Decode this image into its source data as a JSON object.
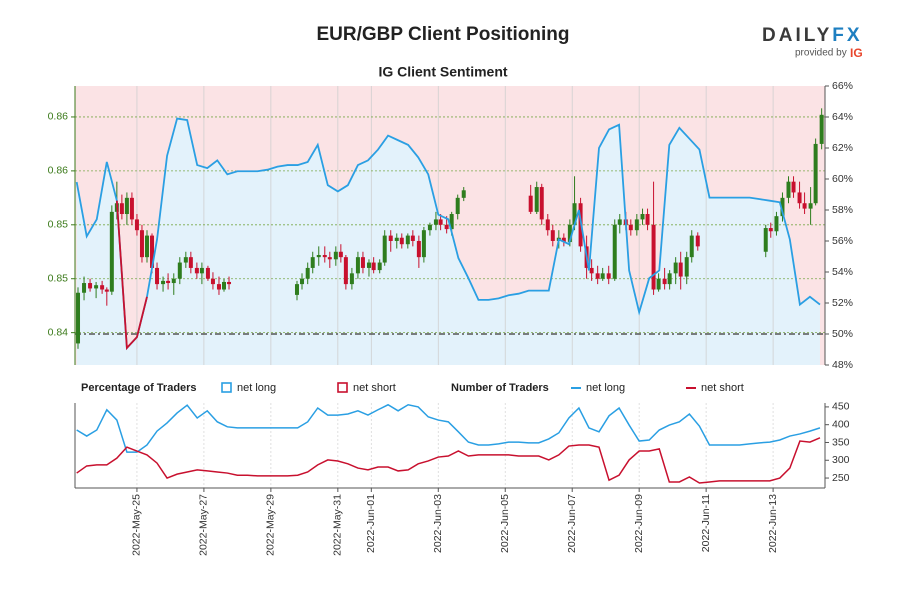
{
  "header": {
    "title": "EUR/GBP Client Positioning",
    "brand": [
      "DAILY",
      "FX"
    ],
    "provided_by": "provided by",
    "ig": "IG"
  },
  "chart_data": [
    {
      "type": "candlestick",
      "title": "IG Client Sentiment",
      "xlim": [
        23.15,
        45.55
      ],
      "ylim": [
        0.837,
        0.86287
      ],
      "yticks": [
        0.84,
        {
          "value": 0.845,
          "label": "0.85"
        },
        0.85,
        {
          "value": 0.855,
          "label": "0.86"
        },
        0.86
      ],
      "y2lim": [
        48,
        66
      ],
      "y2ticks": [
        {
          "value": 48,
          "label": "48%"
        },
        {
          "value": 50,
          "label": "50%"
        },
        {
          "value": 52,
          "label": "52%"
        },
        {
          "value": 54,
          "label": "54%"
        },
        {
          "value": 56,
          "label": "56%"
        },
        {
          "value": 58,
          "label": "58%"
        },
        {
          "value": 60,
          "label": "60%"
        },
        {
          "value": 62,
          "label": "62%"
        },
        {
          "value": 64,
          "label": "64%"
        },
        {
          "value": 66,
          "label": "66%"
        }
      ],
      "reference_line": 50,
      "grid": true,
      "up_color": "#2e7d1e",
      "down_color": "#c8102e",
      "candles": {
        "x": [
          23.24,
          23.42,
          23.6,
          23.78,
          23.96,
          24.1,
          24.25,
          24.4,
          24.55,
          24.7,
          24.85,
          25,
          25.15,
          25.3,
          25.45,
          25.6,
          25.78,
          25.93,
          26.1,
          26.28,
          26.46,
          26.61,
          26.79,
          26.94,
          27.12,
          27.27,
          27.45,
          27.6,
          27.75,
          29.78,
          29.93,
          30.1,
          30.25,
          30.43,
          30.61,
          30.76,
          30.94,
          31.09,
          31.24,
          31.42,
          31.6,
          31.75,
          31.93,
          32.07,
          32.25,
          32.4,
          32.58,
          32.76,
          32.91,
          33.09,
          33.24,
          33.42,
          33.57,
          33.75,
          33.93,
          34.07,
          34.25,
          34.4,
          34.58,
          34.76,
          36.76,
          36.94,
          37.09,
          37.27,
          37.42,
          37.6,
          37.75,
          37.93,
          38.07,
          38.25,
          38.43,
          38.58,
          38.76,
          38.91,
          39.09,
          39.27,
          39.42,
          39.6,
          39.75,
          39.93,
          40.1,
          40.25,
          40.43,
          40.58,
          40.76,
          40.91,
          41.09,
          41.24,
          41.42,
          41.57,
          41.75,
          43.78,
          43.93,
          44.1,
          44.28,
          44.46,
          44.61,
          44.79,
          44.94,
          45.12,
          45.27,
          45.45
        ],
        "open": [
          0.839,
          0.8437,
          0.8446,
          0.8441,
          0.8444,
          0.844,
          0.8438,
          0.8512,
          0.852,
          0.851,
          0.8525,
          0.8505,
          0.8495,
          0.847,
          0.849,
          0.846,
          0.8445,
          0.8448,
          0.8446,
          0.845,
          0.8465,
          0.847,
          0.846,
          0.8455,
          0.846,
          0.845,
          0.8445,
          0.844,
          0.8447,
          0.8435,
          0.8445,
          0.845,
          0.846,
          0.847,
          0.8472,
          0.847,
          0.8468,
          0.8475,
          0.847,
          0.8445,
          0.8455,
          0.847,
          0.846,
          0.8465,
          0.8458,
          0.8465,
          0.849,
          0.8485,
          0.8488,
          0.8482,
          0.849,
          0.8485,
          0.847,
          0.8495,
          0.85,
          0.8505,
          0.85,
          0.8496,
          0.851,
          0.8525,
          0.8527,
          0.8512,
          0.8535,
          0.8505,
          0.8495,
          0.8485,
          0.8488,
          0.8484,
          0.85,
          0.852,
          0.848,
          0.846,
          0.8455,
          0.845,
          0.8455,
          0.845,
          0.85,
          0.8505,
          0.85,
          0.8495,
          0.8505,
          0.851,
          0.85,
          0.844,
          0.845,
          0.8445,
          0.8455,
          0.8465,
          0.8452,
          0.847,
          0.849,
          0.8475,
          0.8497,
          0.8494,
          0.8508,
          0.8525,
          0.854,
          0.853,
          0.852,
          0.8515,
          0.852,
          0.8575
        ],
        "high": [
          0.8442,
          0.8452,
          0.845,
          0.8447,
          0.8448,
          0.8442,
          0.8518,
          0.854,
          0.8528,
          0.853,
          0.853,
          0.851,
          0.85,
          0.8495,
          0.8492,
          0.8465,
          0.8452,
          0.8455,
          0.8455,
          0.847,
          0.8475,
          0.8475,
          0.8465,
          0.8465,
          0.8462,
          0.8456,
          0.8452,
          0.845,
          0.8452,
          0.8448,
          0.8455,
          0.8465,
          0.8475,
          0.848,
          0.848,
          0.8475,
          0.848,
          0.8482,
          0.8472,
          0.846,
          0.8475,
          0.8475,
          0.8468,
          0.847,
          0.8468,
          0.8495,
          0.8495,
          0.8492,
          0.8492,
          0.8492,
          0.8495,
          0.849,
          0.8498,
          0.8502,
          0.8512,
          0.851,
          0.8508,
          0.8512,
          0.8528,
          0.8535,
          0.8537,
          0.854,
          0.8538,
          0.851,
          0.85,
          0.8495,
          0.8492,
          0.8505,
          0.8545,
          0.8525,
          0.849,
          0.8468,
          0.8462,
          0.846,
          0.8462,
          0.8505,
          0.851,
          0.8512,
          0.8505,
          0.851,
          0.8515,
          0.8515,
          0.854,
          0.8455,
          0.846,
          0.8458,
          0.847,
          0.8475,
          0.8475,
          0.8495,
          0.8493,
          0.85,
          0.8502,
          0.8512,
          0.853,
          0.8545,
          0.8545,
          0.854,
          0.853,
          0.8535,
          0.858,
          0.8608
        ],
        "low": [
          0.8385,
          0.843,
          0.8438,
          0.8432,
          0.8436,
          0.8425,
          0.8435,
          0.8505,
          0.8505,
          0.85,
          0.85,
          0.849,
          0.8465,
          0.8465,
          0.8455,
          0.844,
          0.8438,
          0.844,
          0.8435,
          0.8445,
          0.846,
          0.8455,
          0.845,
          0.8445,
          0.8448,
          0.844,
          0.8435,
          0.8438,
          0.844,
          0.843,
          0.844,
          0.8445,
          0.8455,
          0.8462,
          0.8465,
          0.846,
          0.8462,
          0.8465,
          0.844,
          0.844,
          0.845,
          0.8455,
          0.8452,
          0.8455,
          0.8455,
          0.8462,
          0.8475,
          0.8478,
          0.8478,
          0.8478,
          0.848,
          0.846,
          0.8465,
          0.849,
          0.8495,
          0.8495,
          0.8492,
          0.849,
          0.8505,
          0.8522,
          0.851,
          0.851,
          0.85,
          0.849,
          0.848,
          0.8478,
          0.848,
          0.848,
          0.8495,
          0.8475,
          0.845,
          0.8448,
          0.8445,
          0.8448,
          0.8445,
          0.8448,
          0.8492,
          0.8495,
          0.849,
          0.849,
          0.85,
          0.8495,
          0.8435,
          0.8438,
          0.844,
          0.844,
          0.8445,
          0.844,
          0.8445,
          0.8465,
          0.8476,
          0.847,
          0.8488,
          0.849,
          0.8503,
          0.852,
          0.8525,
          0.8515,
          0.851,
          0.85,
          0.8518,
          0.857
        ],
        "close": [
          0.8437,
          0.8446,
          0.8441,
          0.8444,
          0.844,
          0.8438,
          0.8512,
          0.852,
          0.851,
          0.8525,
          0.8505,
          0.8495,
          0.847,
          0.849,
          0.846,
          0.8445,
          0.8448,
          0.8446,
          0.845,
          0.8465,
          0.847,
          0.846,
          0.8455,
          0.846,
          0.845,
          0.8445,
          0.844,
          0.8447,
          0.8445,
          0.8445,
          0.845,
          0.846,
          0.847,
          0.8472,
          0.847,
          0.8468,
          0.8475,
          0.847,
          0.8445,
          0.8455,
          0.847,
          0.846,
          0.8465,
          0.8458,
          0.8465,
          0.849,
          0.8485,
          0.8488,
          0.8482,
          0.849,
          0.8485,
          0.847,
          0.8495,
          0.85,
          0.8505,
          0.85,
          0.8496,
          0.851,
          0.8525,
          0.8532,
          0.8512,
          0.8535,
          0.8505,
          0.8495,
          0.8485,
          0.8488,
          0.8484,
          0.85,
          0.852,
          0.848,
          0.846,
          0.8455,
          0.845,
          0.8455,
          0.845,
          0.85,
          0.8505,
          0.85,
          0.8495,
          0.8505,
          0.851,
          0.85,
          0.844,
          0.845,
          0.8445,
          0.8455,
          0.8465,
          0.8452,
          0.847,
          0.849,
          0.848,
          0.8497,
          0.8494,
          0.8508,
          0.8525,
          0.854,
          0.853,
          0.852,
          0.8515,
          0.852,
          0.8575,
          0.8602
        ]
      },
      "legend_title": "Percentage of Traders",
      "series": [
        {
          "name": "net long",
          "color": "#2a9fe3",
          "fill": "#e3f2fb",
          "axis": "y2",
          "x": [
            23.2,
            23.5,
            23.8,
            24.1,
            24.4,
            24.7,
            25,
            25.3,
            25.6,
            25.9,
            26.2,
            26.5,
            26.8,
            27.1,
            27.4,
            27.7,
            28,
            28.3,
            28.6,
            28.9,
            29.2,
            29.5,
            29.8,
            30.1,
            30.4,
            30.7,
            31,
            31.3,
            31.6,
            31.9,
            32.2,
            32.5,
            32.8,
            33.1,
            33.4,
            33.7,
            34,
            34.3,
            34.6,
            34.9,
            35.2,
            35.5,
            35.8,
            36.1,
            36.4,
            36.7,
            37,
            37.3,
            37.6,
            37.9,
            38.2,
            38.5,
            38.8,
            39.1,
            39.4,
            39.7,
            40,
            40.3,
            40.6,
            40.9,
            41.2,
            41.5,
            41.8,
            42.1,
            42.4,
            42.7,
            43,
            43.3,
            43.6,
            43.9,
            44.2,
            44.5,
            44.8,
            45.1,
            45.4
          ],
          "values": [
            59.8,
            56.3,
            57.4,
            61.1,
            58.6,
            49.1,
            49.8,
            52.4,
            56.1,
            61.5,
            63.9,
            63.8,
            60.9,
            60.7,
            61.2,
            60.3,
            60.5,
            60.5,
            60.5,
            60.6,
            60.8,
            60.9,
            60.9,
            61.1,
            62.2,
            59.6,
            59.2,
            59.6,
            60.9,
            61.2,
            61.9,
            62.8,
            62.5,
            62.2,
            61.4,
            60.3,
            57.7,
            57.4,
            54.9,
            53.6,
            52.2,
            52.2,
            52.3,
            52.5,
            52.6,
            52.8,
            52.8,
            52.8,
            56.1,
            55.8,
            58,
            54.1,
            62,
            63.2,
            63.5,
            54.1,
            51.4,
            53.6,
            54.1,
            62.2,
            63.3,
            62.6,
            61.9,
            58.8,
            58.8,
            58.8,
            58.8,
            58.8,
            58.7,
            58.6,
            58.5,
            56.1,
            51.9,
            52.4,
            51.9
          ]
        },
        {
          "name": "net short",
          "color": "#c8102e",
          "fill": "#fbe3e5"
        }
      ]
    },
    {
      "type": "line",
      "legend_title": "Number of Traders",
      "xlim": [
        23.15,
        45.55
      ],
      "xticks": [
        {
          "value": 25,
          "label": "2022-May-25"
        },
        {
          "value": 27,
          "label": "2022-May-27"
        },
        {
          "value": 29,
          "label": "2022-May-29"
        },
        {
          "value": 31,
          "label": "2022-May-31"
        },
        {
          "value": 32,
          "label": "2022-Jun-01"
        },
        {
          "value": 34,
          "label": "2022-Jun-03"
        },
        {
          "value": 36,
          "label": "2022-Jun-05"
        },
        {
          "value": 38,
          "label": "2022-Jun-07"
        },
        {
          "value": 40,
          "label": "2022-Jun-09"
        },
        {
          "value": 42,
          "label": "2022-Jun-11"
        },
        {
          "value": 44,
          "label": "2022-Jun-13"
        }
      ],
      "ylim": [
        222,
        461
      ],
      "yticks": [
        250,
        300,
        350,
        400,
        450
      ],
      "grid": true,
      "x": [
        23.2,
        23.5,
        23.8,
        24.1,
        24.4,
        24.7,
        25,
        25.3,
        25.6,
        25.9,
        26.2,
        26.5,
        26.8,
        27.1,
        27.4,
        27.7,
        28,
        28.3,
        28.6,
        28.9,
        29.2,
        29.5,
        29.8,
        30.1,
        30.4,
        30.7,
        31,
        31.3,
        31.6,
        31.9,
        32.2,
        32.5,
        32.8,
        33.1,
        33.4,
        33.7,
        34,
        34.3,
        34.6,
        34.9,
        35.2,
        35.5,
        35.8,
        36.1,
        36.4,
        36.7,
        37,
        37.3,
        37.6,
        37.9,
        38.2,
        38.5,
        38.8,
        39.1,
        39.4,
        39.7,
        40,
        40.3,
        40.6,
        40.9,
        41.2,
        41.5,
        41.8,
        42.1,
        42.4,
        42.7,
        43,
        43.3,
        43.6,
        43.9,
        44.2,
        44.5,
        44.8,
        45.1,
        45.4
      ],
      "series": [
        {
          "name": "net long",
          "color": "#2a9fe3",
          "values": [
            385,
            368,
            385,
            442,
            413,
            323,
            323,
            343,
            382,
            405,
            433,
            455,
            419,
            439,
            408,
            394,
            391,
            391,
            391,
            391,
            391,
            391,
            391,
            408,
            447,
            427,
            427,
            430,
            439,
            427,
            442,
            456,
            439,
            456,
            450,
            422,
            413,
            408,
            380,
            351,
            343,
            343,
            346,
            351,
            351,
            349,
            349,
            360,
            377,
            419,
            447,
            391,
            380,
            425,
            447,
            399,
            354,
            357,
            385,
            399,
            408,
            430,
            396,
            343,
            343,
            343,
            343,
            346,
            349,
            351,
            357,
            368,
            374,
            382,
            391
          ]
        },
        {
          "name": "net short",
          "color": "#c8102e",
          "values": [
            264,
            284,
            287,
            287,
            306,
            337,
            326,
            315,
            292,
            250,
            261,
            267,
            273,
            270,
            267,
            264,
            258,
            258,
            256,
            256,
            256,
            256,
            258,
            267,
            287,
            301,
            298,
            290,
            278,
            273,
            281,
            281,
            270,
            273,
            290,
            298,
            309,
            312,
            326,
            312,
            315,
            315,
            315,
            315,
            312,
            312,
            312,
            301,
            315,
            340,
            343,
            343,
            337,
            244,
            258,
            301,
            326,
            326,
            332,
            239,
            239,
            253,
            236,
            239,
            242,
            242,
            242,
            242,
            242,
            242,
            250,
            278,
            354,
            351,
            363
          ]
        }
      ]
    }
  ]
}
